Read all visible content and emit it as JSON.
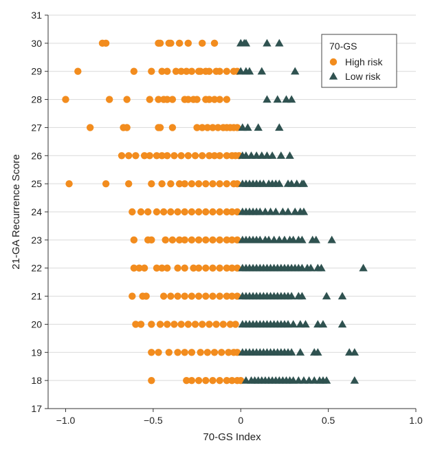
{
  "chart_data": {
    "type": "scatter",
    "xlabel": "70-GS Index",
    "ylabel": "21-GA Recurrence Score",
    "xlim": [
      -1.1,
      1.0
    ],
    "ylim": [
      17,
      31
    ],
    "xticks": [
      -1.0,
      -0.5,
      0,
      0.5,
      1.0
    ],
    "xtick_labels": [
      "−1.0",
      "−0.5",
      "0",
      "0.5",
      "1.0"
    ],
    "yticks": [
      17,
      18,
      19,
      20,
      21,
      22,
      23,
      24,
      25,
      26,
      27,
      28,
      29,
      30,
      31
    ],
    "ytick_labels": [
      "17",
      "18",
      "19",
      "20",
      "21",
      "22",
      "23",
      "24",
      "25",
      "26",
      "27",
      "28",
      "29",
      "30",
      "31"
    ],
    "grid": "horizontal",
    "legend": {
      "title": "70-GS",
      "position": "top-right",
      "entries": [
        {
          "name": "High risk",
          "marker": "circle",
          "color": "#F28C1E"
        },
        {
          "name": "Low risk",
          "marker": "triangle",
          "color": "#2F5250"
        }
      ]
    },
    "series": [
      {
        "name": "High risk",
        "marker": "circle",
        "color": "#F28C1E",
        "points": [
          {
            "score": 30,
            "x": [
              -0.79,
              -0.77,
              -0.47,
              -0.46,
              -0.41,
              -0.4,
              -0.35,
              -0.3,
              -0.22,
              -0.15
            ]
          },
          {
            "score": 29,
            "x": [
              -0.93,
              -0.61,
              -0.51,
              -0.45,
              -0.42,
              -0.37,
              -0.34,
              -0.31,
              -0.28,
              -0.24,
              -0.23,
              -0.2,
              -0.18,
              -0.14,
              -0.12,
              -0.08,
              -0.04,
              -0.02
            ]
          },
          {
            "score": 28,
            "x": [
              -1.0,
              -0.75,
              -0.65,
              -0.52,
              -0.47,
              -0.44,
              -0.42,
              -0.39,
              -0.32,
              -0.3,
              -0.27,
              -0.25,
              -0.2,
              -0.18,
              -0.15,
              -0.12,
              -0.08
            ]
          },
          {
            "score": 27,
            "x": [
              -0.86,
              -0.67,
              -0.65,
              -0.47,
              -0.46,
              -0.39,
              -0.25,
              -0.22,
              -0.19,
              -0.16,
              -0.13,
              -0.1,
              -0.08,
              -0.06,
              -0.04,
              -0.02
            ]
          },
          {
            "score": 26,
            "x": [
              -0.68,
              -0.64,
              -0.6,
              -0.55,
              -0.52,
              -0.48,
              -0.45,
              -0.42,
              -0.38,
              -0.34,
              -0.3,
              -0.26,
              -0.22,
              -0.18,
              -0.15,
              -0.12,
              -0.08,
              -0.05,
              -0.03,
              -0.01
            ]
          },
          {
            "score": 25,
            "x": [
              -0.98,
              -0.77,
              -0.64,
              -0.51,
              -0.45,
              -0.4,
              -0.35,
              -0.32,
              -0.28,
              -0.24,
              -0.2,
              -0.16,
              -0.12,
              -0.08,
              -0.04,
              -0.02
            ]
          },
          {
            "score": 24,
            "x": [
              -0.62,
              -0.57,
              -0.53,
              -0.48,
              -0.44,
              -0.4,
              -0.36,
              -0.32,
              -0.28,
              -0.24,
              -0.2,
              -0.16,
              -0.12,
              -0.08,
              -0.05,
              -0.02
            ]
          },
          {
            "score": 23,
            "x": [
              -0.61,
              -0.53,
              -0.51,
              -0.43,
              -0.39,
              -0.35,
              -0.32,
              -0.28,
              -0.24,
              -0.2,
              -0.16,
              -0.12,
              -0.08,
              -0.05,
              -0.02
            ]
          },
          {
            "score": 22,
            "x": [
              -0.61,
              -0.58,
              -0.55,
              -0.48,
              -0.45,
              -0.42,
              -0.36,
              -0.32,
              -0.27,
              -0.24,
              -0.2,
              -0.16,
              -0.12,
              -0.08,
              -0.05,
              -0.02
            ]
          },
          {
            "score": 21,
            "x": [
              -0.62,
              -0.56,
              -0.54,
              -0.44,
              -0.4,
              -0.36,
              -0.32,
              -0.28,
              -0.24,
              -0.2,
              -0.16,
              -0.12,
              -0.08,
              -0.05,
              -0.02
            ]
          },
          {
            "score": 20,
            "x": [
              -0.6,
              -0.57,
              -0.51,
              -0.46,
              -0.42,
              -0.38,
              -0.34,
              -0.3,
              -0.26,
              -0.22,
              -0.18,
              -0.14,
              -0.1,
              -0.06,
              -0.03
            ]
          },
          {
            "score": 19,
            "x": [
              -0.51,
              -0.47,
              -0.41,
              -0.36,
              -0.32,
              -0.28,
              -0.23,
              -0.19,
              -0.15,
              -0.11,
              -0.07,
              -0.04,
              -0.02
            ]
          },
          {
            "score": 18,
            "x": [
              -0.51,
              -0.31,
              -0.28,
              -0.24,
              -0.2,
              -0.16,
              -0.12,
              -0.08,
              -0.05,
              -0.02,
              0.0
            ]
          }
        ]
      },
      {
        "name": "Low risk",
        "marker": "triangle",
        "color": "#2F5250",
        "points": [
          {
            "score": 30,
            "x": [
              0.0,
              0.02,
              0.03,
              0.15,
              0.22
            ]
          },
          {
            "score": 29,
            "x": [
              0.0,
              0.03,
              0.05,
              0.12,
              0.31
            ]
          },
          {
            "score": 28,
            "x": [
              0.15,
              0.21,
              0.26,
              0.29
            ]
          },
          {
            "score": 27,
            "x": [
              0.01,
              0.04,
              0.1,
              0.22
            ]
          },
          {
            "score": 26,
            "x": [
              0.01,
              0.03,
              0.06,
              0.09,
              0.12,
              0.15,
              0.18,
              0.23,
              0.28
            ]
          },
          {
            "score": 25,
            "x": [
              0.01,
              0.03,
              0.05,
              0.07,
              0.09,
              0.11,
              0.13,
              0.16,
              0.18,
              0.2,
              0.22,
              0.27,
              0.29,
              0.32,
              0.35,
              0.36
            ]
          },
          {
            "score": 24,
            "x": [
              0.01,
              0.03,
              0.05,
              0.07,
              0.09,
              0.11,
              0.14,
              0.17,
              0.2,
              0.24,
              0.27,
              0.31,
              0.34,
              0.36
            ]
          },
          {
            "score": 23,
            "x": [
              0.01,
              0.03,
              0.05,
              0.07,
              0.09,
              0.11,
              0.14,
              0.16,
              0.19,
              0.22,
              0.25,
              0.28,
              0.3,
              0.33,
              0.35,
              0.41,
              0.43,
              0.52
            ]
          },
          {
            "score": 22,
            "x": [
              0.01,
              0.03,
              0.05,
              0.07,
              0.09,
              0.11,
              0.13,
              0.15,
              0.17,
              0.19,
              0.21,
              0.23,
              0.25,
              0.27,
              0.29,
              0.31,
              0.33,
              0.35,
              0.38,
              0.4,
              0.44,
              0.46,
              0.7
            ]
          },
          {
            "score": 21,
            "x": [
              0.01,
              0.03,
              0.05,
              0.07,
              0.09,
              0.11,
              0.13,
              0.15,
              0.17,
              0.19,
              0.21,
              0.23,
              0.25,
              0.27,
              0.29,
              0.33,
              0.35,
              0.49,
              0.58
            ]
          },
          {
            "score": 20,
            "x": [
              0.01,
              0.03,
              0.05,
              0.07,
              0.09,
              0.11,
              0.13,
              0.15,
              0.17,
              0.19,
              0.21,
              0.23,
              0.25,
              0.27,
              0.3,
              0.34,
              0.37,
              0.44,
              0.47,
              0.58
            ]
          },
          {
            "score": 19,
            "x": [
              0.01,
              0.03,
              0.05,
              0.07,
              0.09,
              0.11,
              0.13,
              0.15,
              0.17,
              0.19,
              0.21,
              0.23,
              0.25,
              0.27,
              0.29,
              0.34,
              0.42,
              0.44,
              0.62,
              0.65
            ]
          },
          {
            "score": 18,
            "x": [
              0.03,
              0.06,
              0.08,
              0.1,
              0.12,
              0.14,
              0.16,
              0.18,
              0.2,
              0.22,
              0.24,
              0.26,
              0.28,
              0.3,
              0.33,
              0.36,
              0.39,
              0.42,
              0.45,
              0.47,
              0.49,
              0.65
            ]
          }
        ]
      }
    ]
  }
}
